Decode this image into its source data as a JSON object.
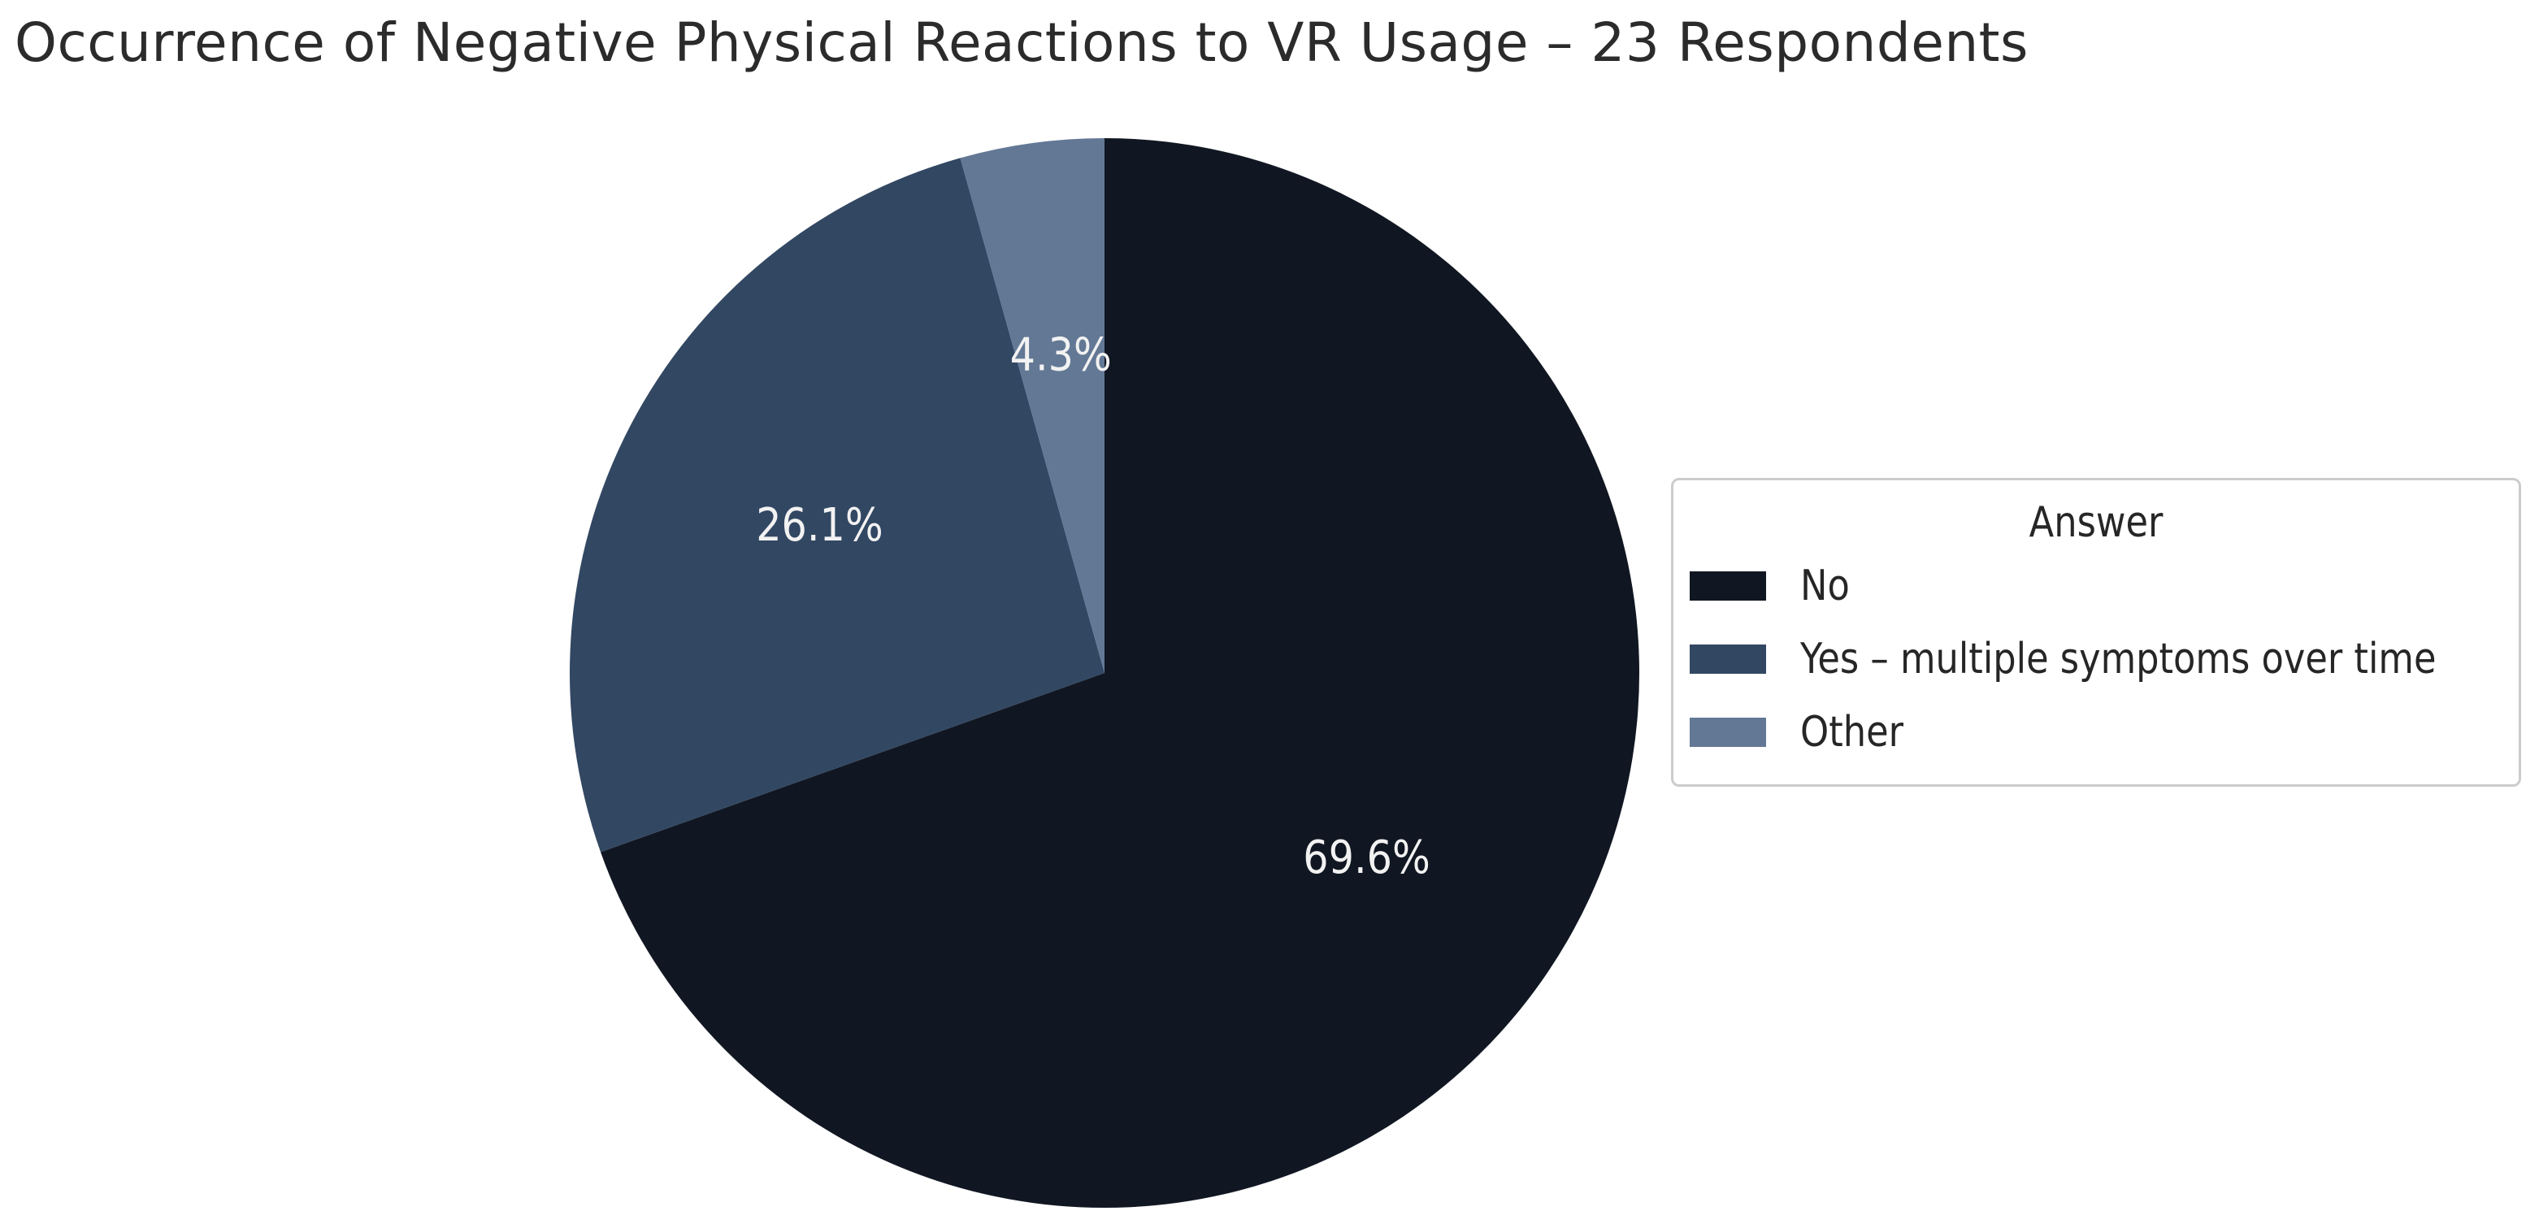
{
  "chart_data": {
    "type": "pie",
    "title": "Occurrence of Negative Physical Reactions to VR Usage – 23 Respondents",
    "categories": [
      "No",
      "Yes – multiple symptoms over time",
      "Other"
    ],
    "values": [
      16,
      6,
      1
    ],
    "percent_labels": [
      "69.6%",
      "26.1%",
      "4.3%"
    ],
    "colors": [
      "#111722",
      "#324762",
      "#637895"
    ],
    "start_angle": "90° (12 o'clock)",
    "direction": "clockwise",
    "legend": {
      "title": "Answer",
      "placement": "right"
    }
  }
}
